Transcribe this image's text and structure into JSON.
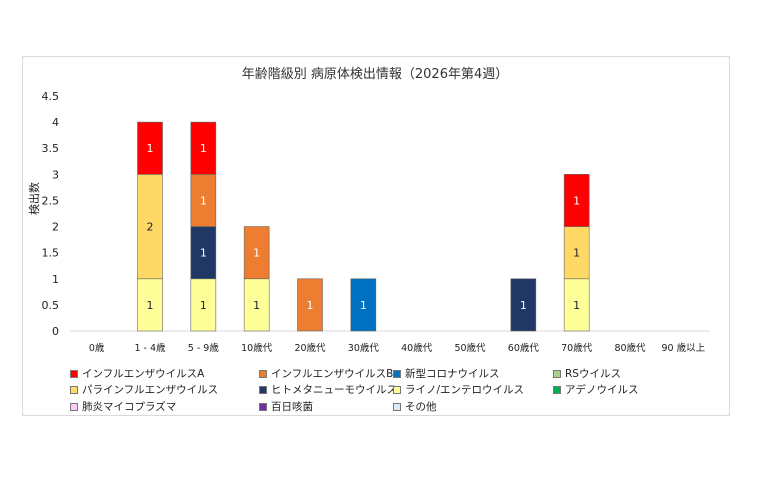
{
  "chart_data": {
    "type": "bar",
    "stacked": true,
    "title": "年齢階級別 病原体検出情報（2026年第4週）",
    "ylabel": "検出数",
    "xlabel": "",
    "ylim": [
      0,
      4.5
    ],
    "yticks": [
      "0",
      "0.5",
      "1",
      "1.5",
      "2",
      "2.5",
      "3",
      "3.5",
      "4",
      "4.5"
    ],
    "categories": [
      "0歳",
      "1 - 4歳",
      "5 - 9歳",
      "10歳代",
      "20歳代",
      "30歳代",
      "40歳代",
      "50歳代",
      "60歳代",
      "70歳代",
      "80歳代",
      "90 歳以上"
    ],
    "series": [
      {
        "name": "ライノ/エンテロウイルス",
        "color": "#ffff99",
        "label_color": "#222222",
        "values": [
          0,
          1,
          1,
          1,
          0,
          0,
          0,
          0,
          0,
          1,
          0,
          0
        ]
      },
      {
        "name": "パラインフルエンザウイルス",
        "color": "#ffd966",
        "label_color": "#222222",
        "values": [
          0,
          2,
          0,
          0,
          0,
          0,
          0,
          0,
          0,
          1,
          0,
          0
        ]
      },
      {
        "name": "ヒトメタニューモウイルス",
        "color": "#1f3864",
        "label_color": "#ffffff",
        "values": [
          0,
          0,
          1,
          0,
          0,
          0,
          0,
          0,
          1,
          0,
          0,
          0
        ]
      },
      {
        "name": "インフルエンザウイルスB",
        "color": "#ed7d31",
        "label_color": "#ffffff",
        "values": [
          0,
          0,
          1,
          1,
          1,
          0,
          0,
          0,
          0,
          0,
          0,
          0
        ]
      },
      {
        "name": "新型コロナウイルス",
        "color": "#0070c0",
        "label_color": "#ffffff",
        "values": [
          0,
          0,
          0,
          0,
          0,
          1,
          0,
          0,
          0,
          0,
          0,
          0
        ]
      },
      {
        "name": "インフルエンザウイルスA",
        "color": "#ff0000",
        "label_color": "#ffffff",
        "values": [
          0,
          1,
          1,
          0,
          0,
          0,
          0,
          0,
          0,
          1,
          0,
          0
        ]
      }
    ],
    "legend": [
      {
        "name": "インフルエンザウイルスA",
        "color": "#ff0000"
      },
      {
        "name": "インフルエンザウイルスB",
        "color": "#ed7d31"
      },
      {
        "name": "新型コロナウイルス",
        "color": "#0070c0"
      },
      {
        "name": "RSウイルス",
        "color": "#a9d08e"
      },
      {
        "name": "パラインフルエンザウイルス",
        "color": "#ffd966"
      },
      {
        "name": "ヒトメタニューモウイルス",
        "color": "#1f3864"
      },
      {
        "name": "ライノ/エンテロウイルス",
        "color": "#ffff99"
      },
      {
        "name": "アデノウイルス",
        "color": "#00b050"
      },
      {
        "name": "肺炎マイコプラズマ",
        "color": "#ffccff"
      },
      {
        "name": "百日咳菌",
        "color": "#7030a0"
      },
      {
        "name": "その他",
        "color": "#ddebf7"
      }
    ],
    "legend_position": "bottom",
    "grid": false
  }
}
